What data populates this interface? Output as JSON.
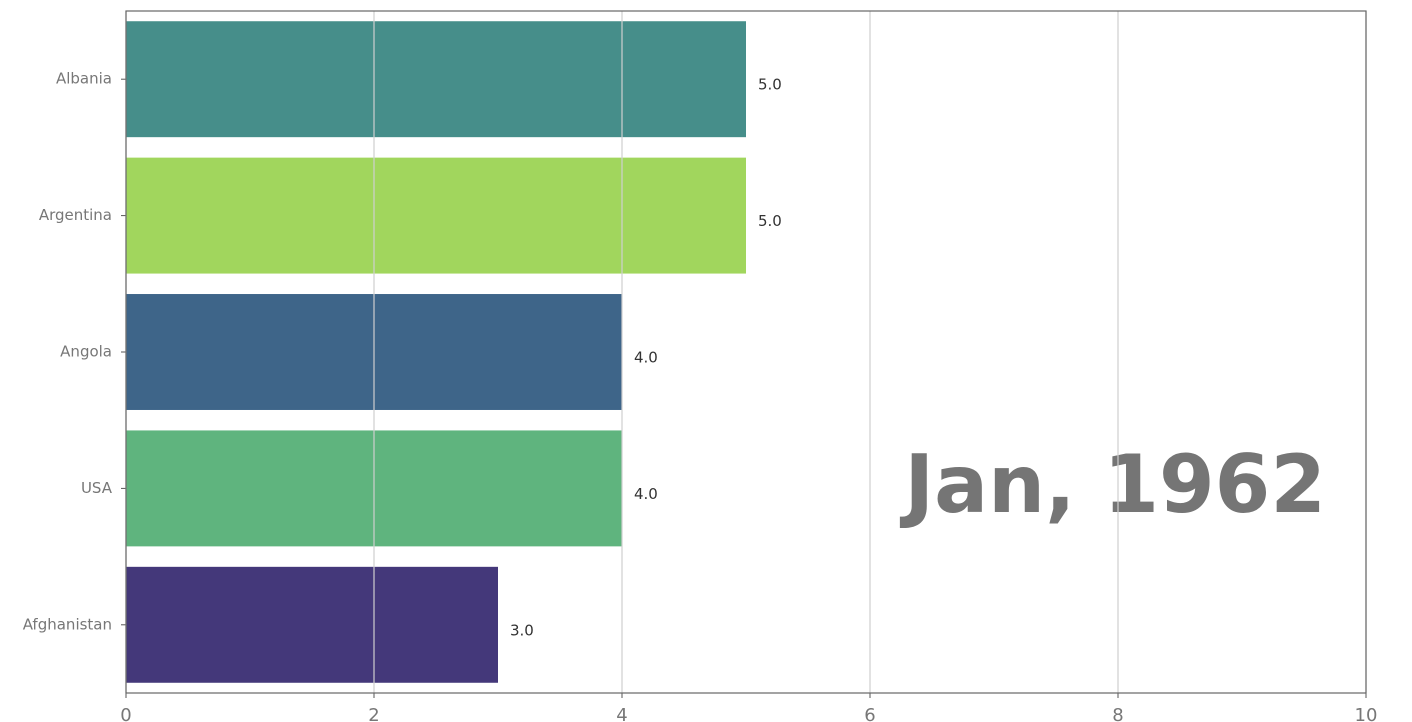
{
  "chart_data": {
    "type": "barh",
    "annotation": "Jan, 1962",
    "categories": [
      "Albania",
      "Argentina",
      "Angola",
      "USA",
      "Afghanistan"
    ],
    "values": [
      5,
      5,
      4,
      4,
      3
    ],
    "value_labels": [
      "5.0",
      "5.0",
      "4.0",
      "4.0",
      "3.0"
    ],
    "colors": [
      "#468e8a",
      "#a1d65d",
      "#3e6589",
      "#5fb47e",
      "#44387a"
    ],
    "xlim": [
      0,
      10
    ],
    "xticks": [
      0,
      2,
      4,
      6,
      8,
      10
    ],
    "grid": true
  }
}
